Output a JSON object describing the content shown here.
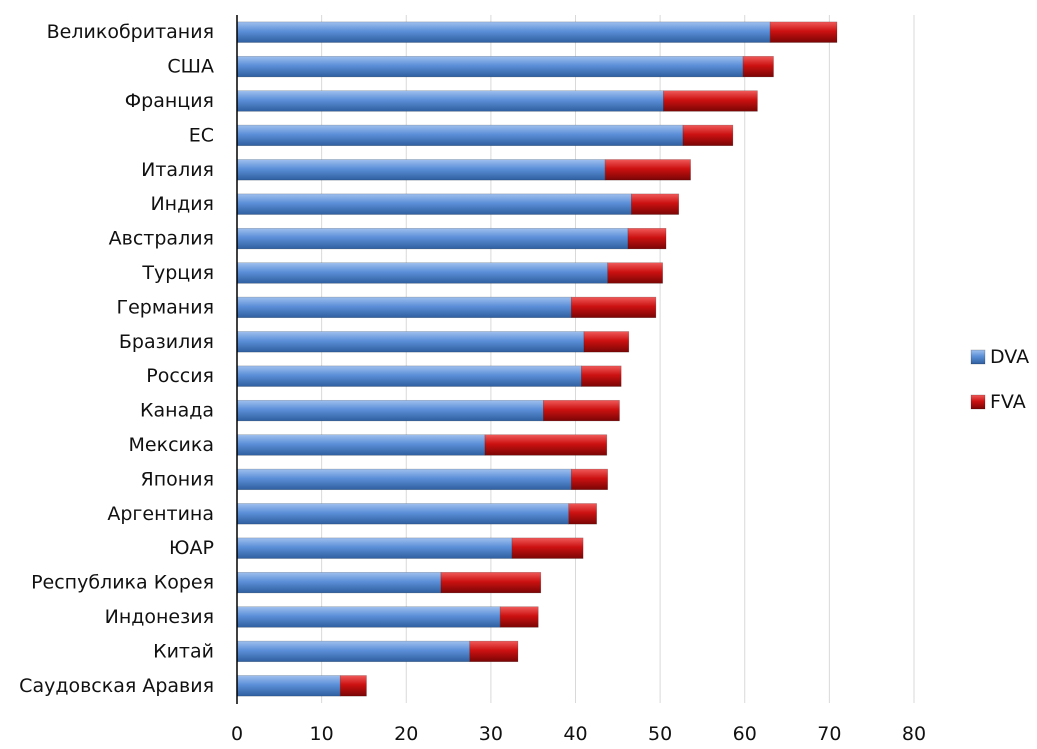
{
  "chart_data": {
    "type": "bar",
    "orientation": "horizontal",
    "stacked": true,
    "categories": [
      "Великобритания",
      "США",
      "Франция",
      "ЕС",
      "Италия",
      "Индия",
      "Австралия",
      "Турция",
      "Германия",
      "Бразилия",
      "Россия",
      "Канада",
      "Мексика",
      "Япония",
      "Аргентина",
      "ЮАР",
      "Республика Корея",
      "Индонезия",
      "Китай",
      "Саудовская Аравия"
    ],
    "series": [
      {
        "name": "DVA",
        "color": "#5b8fd8",
        "values": [
          63,
          59.8,
          50.4,
          52.7,
          43.5,
          46.6,
          46.2,
          43.8,
          39.5,
          41,
          40.7,
          36.2,
          29.3,
          39.5,
          39.2,
          32.5,
          24.1,
          31.1,
          27.5,
          12.2
        ]
      },
      {
        "name": "FVA",
        "color": "#cc1111",
        "values": [
          7.9,
          3.6,
          11.1,
          5.9,
          10.1,
          5.6,
          4.5,
          6.5,
          10,
          5.3,
          4.7,
          9,
          14.4,
          4.3,
          3.3,
          8.4,
          11.8,
          4.5,
          5.7,
          3.1
        ]
      }
    ],
    "xlim": [
      0,
      80
    ],
    "xticks": [
      0,
      10,
      20,
      30,
      40,
      50,
      60,
      70,
      80
    ],
    "grid": true,
    "legend_position": "right",
    "title": "",
    "xlabel": "",
    "ylabel": ""
  }
}
